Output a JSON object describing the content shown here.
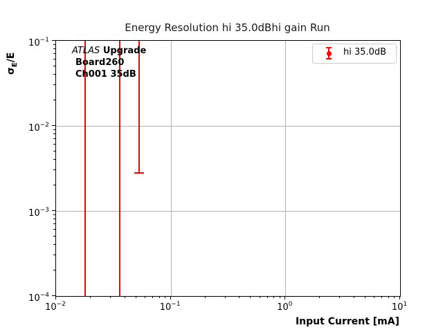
{
  "title": "Energy Resolution hi 35.0dBhi gain Run",
  "axes": {
    "xlabel": "Input Current [mA]",
    "ylabel_sigma": "σ",
    "ylabel_sub": "E",
    "ylabel_rest": "/E"
  },
  "annotation": {
    "line1_italic": "ATLAS",
    "line1_bold": "Upgrade",
    "line2": "Board260",
    "line3": "Ch001 35dB"
  },
  "legend": {
    "label": "hi 35.0dB"
  },
  "colors": {
    "series": "#ff0000",
    "grid": "#b0b0b0",
    "legend_border": "#cccccc",
    "text": "#000000"
  },
  "chart_data": {
    "type": "scatter",
    "subtype": "errorbar",
    "title": "Energy Resolution hi 35.0dBhi gain Run",
    "xlabel": "Input Current [mA]",
    "ylabel": "sigma_E/E",
    "x_scale": "log",
    "y_scale": "log",
    "xlim": [
      0.01,
      10
    ],
    "ylim": [
      0.0001,
      0.1
    ],
    "grid": true,
    "legend_position": "upper right",
    "x_tick_exponents": [
      -2,
      -1,
      0,
      1
    ],
    "y_tick_exponents": [
      -1,
      -2,
      -3,
      -4
    ],
    "minor_tick_mantissas": [
      2,
      3,
      4,
      5,
      6,
      7,
      8,
      9
    ],
    "series": [
      {
        "name": "hi 35.0dB",
        "color": "#ff0000",
        "marker": "circle",
        "points": [
          {
            "x": 0.018,
            "bar_low": 0.0001,
            "bar_high": 0.1,
            "low_clipped": true,
            "high_clipped": true
          },
          {
            "x": 0.036,
            "bar_low": 0.0001,
            "bar_high": 0.1,
            "low_clipped": true,
            "high_clipped": true
          },
          {
            "x": 0.053,
            "bar_low": 0.0028,
            "bar_high": 0.1,
            "low_clipped": false,
            "high_clipped": true
          }
        ]
      }
    ]
  }
}
